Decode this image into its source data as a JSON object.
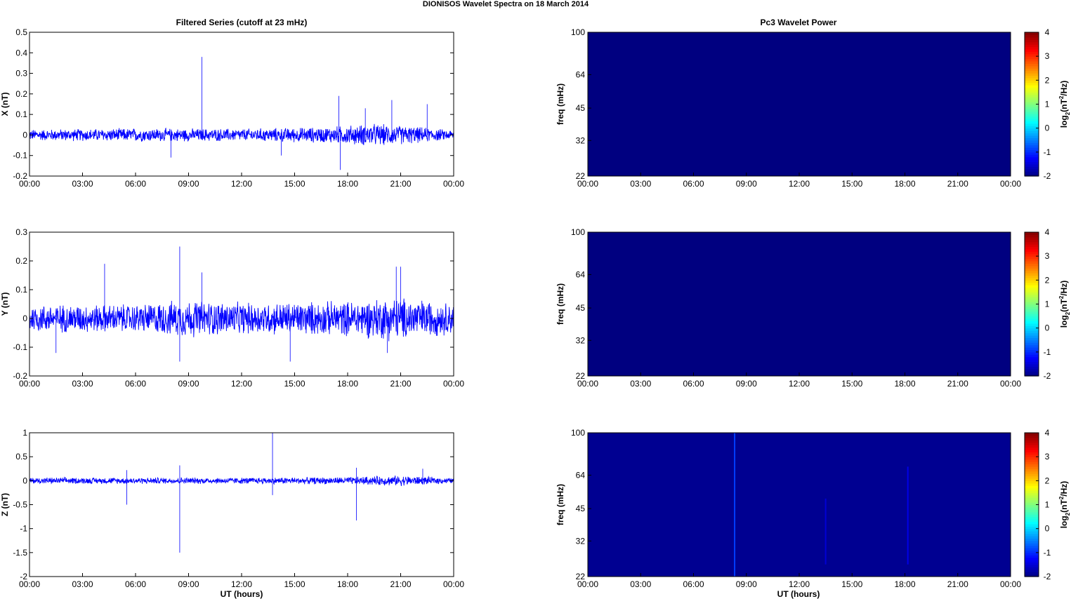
{
  "figure": {
    "title": "DIONISOS Wavelet Spectra on 18 March     2014",
    "left_title": "Filtered Series (cutoff at 23 mHz)",
    "right_title": "Pc3 Wavelet Power",
    "xlabel": "UT (hours)"
  },
  "chart_data": [
    {
      "type": "line",
      "panel": "X",
      "ylabel": "X (nT)",
      "series_color": "#0000ff",
      "ylim": [
        -0.2,
        0.5
      ],
      "yticks": [
        -0.2,
        -0.1,
        0,
        0.1,
        0.2,
        0.3,
        0.4,
        0.5
      ],
      "ytick_labels": [
        "-0.2",
        "-0.1",
        "0",
        "0.1",
        "0.2",
        "0.3",
        "0.4",
        "0.5"
      ],
      "xlim": [
        "00:00",
        "24:00"
      ],
      "xtick_labels": [
        "00:00",
        "03:00",
        "06:00",
        "09:00",
        "12:00",
        "15:00",
        "18:00",
        "21:00",
        "00:00"
      ],
      "noise_envelope": [
        {
          "time": "00:00",
          "amplitude": 0.025
        },
        {
          "time": "06:00",
          "amplitude": 0.03
        },
        {
          "time": "12:00",
          "amplitude": 0.028
        },
        {
          "time": "16:30",
          "amplitude": 0.035
        },
        {
          "time": "19:30",
          "amplitude": 0.05
        },
        {
          "time": "21:30",
          "amplitude": 0.04
        },
        {
          "time": "24:00",
          "amplitude": 0.02
        }
      ],
      "spikes": [
        {
          "time": "09:45",
          "value": 0.38
        },
        {
          "time": "17:30",
          "value": 0.19
        },
        {
          "time": "17:35",
          "value": -0.17
        },
        {
          "time": "19:00",
          "value": 0.13
        },
        {
          "time": "20:30",
          "value": 0.17
        },
        {
          "time": "22:30",
          "value": 0.15
        },
        {
          "time": "08:00",
          "value": -0.11
        },
        {
          "time": "14:15",
          "value": -0.1
        }
      ]
    },
    {
      "type": "line",
      "panel": "Y",
      "ylabel": "Y (nT)",
      "series_color": "#0000ff",
      "ylim": [
        -0.2,
        0.3
      ],
      "yticks": [
        -0.2,
        -0.1,
        0,
        0.1,
        0.2,
        0.3
      ],
      "ytick_labels": [
        "-0.2",
        "-0.1",
        "0",
        "0.1",
        "0.2",
        "0.3"
      ],
      "xlim": [
        "00:00",
        "24:00"
      ],
      "xtick_labels": [
        "00:00",
        "03:00",
        "06:00",
        "09:00",
        "12:00",
        "15:00",
        "18:00",
        "21:00",
        "00:00"
      ],
      "noise_envelope": [
        {
          "time": "00:00",
          "amplitude": 0.045
        },
        {
          "time": "06:00",
          "amplitude": 0.045
        },
        {
          "time": "09:00",
          "amplitude": 0.06
        },
        {
          "time": "12:00",
          "amplitude": 0.05
        },
        {
          "time": "18:00",
          "amplitude": 0.055
        },
        {
          "time": "20:30",
          "amplitude": 0.07
        },
        {
          "time": "24:00",
          "amplitude": 0.05
        }
      ],
      "spikes": [
        {
          "time": "08:30",
          "value": 0.25
        },
        {
          "time": "04:15",
          "value": 0.19
        },
        {
          "time": "09:45",
          "value": 0.16
        },
        {
          "time": "20:45",
          "value": 0.18
        },
        {
          "time": "21:00",
          "value": 0.18
        },
        {
          "time": "14:45",
          "value": -0.15
        },
        {
          "time": "08:30",
          "value": -0.15
        },
        {
          "time": "01:30",
          "value": -0.12
        },
        {
          "time": "20:15",
          "value": -0.12
        }
      ]
    },
    {
      "type": "line",
      "panel": "Z",
      "ylabel": "Z (nT)",
      "xlabel": "UT (hours)",
      "series_color": "#0000ff",
      "ylim": [
        -2,
        1
      ],
      "yticks": [
        -2,
        -1.5,
        -1,
        -0.5,
        0,
        0.5,
        1
      ],
      "ytick_labels": [
        "-2",
        "-1.5",
        "-1",
        "-0.5",
        "0",
        "0.5",
        "1"
      ],
      "xlim": [
        "00:00",
        "24:00"
      ],
      "xtick_labels": [
        "00:00",
        "03:00",
        "06:00",
        "09:00",
        "12:00",
        "15:00",
        "18:00",
        "21:00",
        "00:00"
      ],
      "noise_envelope": [
        {
          "time": "00:00",
          "amplitude": 0.06
        },
        {
          "time": "12:00",
          "amplitude": 0.06
        },
        {
          "time": "18:00",
          "amplitude": 0.07
        },
        {
          "time": "21:00",
          "amplitude": 0.1
        },
        {
          "time": "24:00",
          "amplitude": 0.05
        }
      ],
      "spikes": [
        {
          "time": "13:45",
          "value": 1.0
        },
        {
          "time": "13:45",
          "value": -0.3
        },
        {
          "time": "08:30",
          "value": -1.5
        },
        {
          "time": "08:30",
          "value": 0.32
        },
        {
          "time": "05:30",
          "value": -0.5
        },
        {
          "time": "05:30",
          "value": 0.22
        },
        {
          "time": "18:30",
          "value": -0.83
        },
        {
          "time": "18:30",
          "value": 0.27
        },
        {
          "time": "22:15",
          "value": 0.25
        }
      ]
    },
    {
      "type": "heatmap",
      "panel": "X",
      "ylabel": "freq (mHz)",
      "colorbar_label": "log2(nT2/Hz)",
      "colormap": "jet",
      "background_level": -2,
      "clim": [
        -2,
        4
      ],
      "colorbar_ticks": [
        "-2",
        "-1",
        "0",
        "1",
        "2",
        "3",
        "4"
      ],
      "ylim": [
        22,
        100
      ],
      "yticks": [
        22,
        32,
        45,
        64,
        100
      ],
      "ytick_labels": [
        "22",
        "32",
        "45",
        "64",
        "100"
      ],
      "xtick_labels": [
        "00:00",
        "03:00",
        "06:00",
        "09:00",
        "12:00",
        "15:00",
        "18:00",
        "21:00",
        "00:00"
      ],
      "stripes": []
    },
    {
      "type": "heatmap",
      "panel": "Y",
      "ylabel": "freq (mHz)",
      "colorbar_label": "log2(nT2/Hz)",
      "colormap": "jet",
      "background_level": -2,
      "clim": [
        -2,
        4
      ],
      "colorbar_ticks": [
        "-2",
        "-1",
        "0",
        "1",
        "2",
        "3",
        "4"
      ],
      "ylim": [
        22,
        100
      ],
      "yticks": [
        22,
        32,
        45,
        64,
        100
      ],
      "ytick_labels": [
        "22",
        "32",
        "45",
        "64",
        "100"
      ],
      "xtick_labels": [
        "00:00",
        "03:00",
        "06:00",
        "09:00",
        "12:00",
        "15:00",
        "18:00",
        "21:00",
        "00:00"
      ],
      "stripes": []
    },
    {
      "type": "heatmap",
      "panel": "Z",
      "ylabel": "freq (mHz)",
      "xlabel": "UT (hours)",
      "colorbar_label": "log2(nT2/Hz)",
      "colormap": "jet",
      "background_level": -1.9,
      "clim": [
        -2,
        4
      ],
      "colorbar_ticks": [
        "-2",
        "-1",
        "0",
        "1",
        "2",
        "3",
        "4"
      ],
      "ylim": [
        22,
        100
      ],
      "yticks": [
        22,
        32,
        45,
        64,
        100
      ],
      "ytick_labels": [
        "22",
        "32",
        "45",
        "64",
        "100"
      ],
      "xtick_labels": [
        "00:00",
        "03:00",
        "06:00",
        "09:00",
        "12:00",
        "15:00",
        "18:00",
        "21:00",
        "00:00"
      ],
      "stripes": [
        {
          "time": "08:20",
          "fmin": 22,
          "fmax": 100,
          "level": -0.9
        },
        {
          "time": "13:30",
          "fmin": 25,
          "fmax": 50,
          "level": -1.5
        },
        {
          "time": "18:10",
          "fmin": 25,
          "fmax": 70,
          "level": -1.4
        }
      ]
    }
  ]
}
